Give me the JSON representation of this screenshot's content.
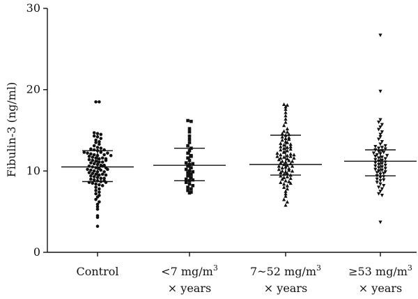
{
  "chart_data": {
    "type": "scatter",
    "subtype": "dot-plot-with-median-iqr",
    "title": "",
    "ylabel": "Fibulin-3 (ng/ml)",
    "ylim": [
      0,
      30
    ],
    "yticks": [
      0,
      10,
      20,
      30
    ],
    "grid": false,
    "categories": [
      {
        "line1": "Control",
        "line2": "",
        "sup": ""
      },
      {
        "line1": "<7 mg/m",
        "sup": "3",
        "line2": "× years"
      },
      {
        "line1": "7~52 mg/m",
        "sup": "3",
        "line2": "× years"
      },
      {
        "line1": "≥53 mg/m",
        "sup": "3",
        "line2": "× years"
      }
    ],
    "series": [
      {
        "marker": "circle",
        "median": 10.5,
        "q1": 8.7,
        "q3": 12.5,
        "values": [
          18.5,
          18.5,
          14.7,
          14.6,
          14.5,
          14.3,
          14.2,
          14.0,
          13.8,
          13.6,
          13.5,
          13.3,
          13.1,
          12.9,
          12.8,
          12.7,
          12.6,
          12.5,
          12.4,
          12.3,
          12.2,
          12.1,
          12.0,
          11.9,
          11.8,
          11.7,
          11.6,
          11.5,
          11.4,
          11.3,
          11.2,
          11.1,
          11.0,
          10.9,
          10.8,
          10.7,
          10.6,
          10.5,
          10.4,
          10.3,
          10.2,
          10.1,
          10.0,
          9.9,
          9.8,
          9.7,
          9.6,
          9.5,
          9.4,
          9.3,
          9.2,
          9.1,
          9.0,
          8.9,
          8.8,
          8.7,
          8.6,
          8.5,
          8.4,
          8.3,
          8.2,
          8.0,
          7.8,
          7.6,
          7.4,
          7.2,
          7.0,
          6.8,
          6.5,
          6.2,
          5.9,
          5.6,
          5.3,
          4.5,
          4.3,
          3.2,
          12.3,
          12.0,
          11.6,
          11.1,
          10.6,
          10.1,
          9.6,
          9.1,
          8.6,
          12.2,
          11.3,
          10.4,
          9.5,
          8.8,
          11.9,
          10.7,
          9.9,
          12.6,
          11.5,
          10.2
        ]
      },
      {
        "marker": "square",
        "median": 10.7,
        "q1": 8.8,
        "q3": 12.8,
        "values": [
          16.2,
          16.1,
          15.2,
          14.8,
          14.3,
          13.9,
          13.5,
          13.1,
          12.8,
          12.5,
          12.2,
          11.9,
          11.6,
          11.3,
          11.0,
          10.8,
          10.6,
          10.4,
          10.2,
          10.0,
          9.8,
          9.6,
          9.4,
          9.2,
          9.0,
          8.8,
          8.6,
          8.4,
          8.2,
          8.0,
          7.8,
          7.6,
          7.4,
          7.3,
          11.8,
          10.9,
          9.9,
          8.9
        ]
      },
      {
        "marker": "triangle-up",
        "median": 10.8,
        "q1": 9.5,
        "q3": 14.4,
        "values": [
          18.2,
          18.1,
          17.9,
          17.6,
          17.2,
          16.8,
          16.4,
          16.0,
          15.6,
          15.2,
          14.9,
          14.6,
          14.4,
          14.2,
          14.0,
          13.8,
          13.6,
          13.4,
          13.2,
          13.0,
          12.8,
          12.6,
          12.4,
          12.2,
          12.0,
          11.8,
          11.6,
          11.4,
          11.2,
          11.0,
          10.8,
          10.6,
          10.4,
          10.2,
          10.0,
          9.8,
          9.6,
          9.4,
          9.2,
          9.0,
          8.8,
          8.6,
          8.4,
          8.2,
          8.0,
          7.8,
          7.5,
          7.2,
          6.9,
          6.5,
          6.2,
          5.8,
          14.8,
          14.1,
          13.5,
          12.9,
          12.3,
          11.7,
          11.1,
          10.5,
          9.9,
          9.3,
          8.7,
          13.9,
          12.5,
          11.3,
          10.1,
          9.1,
          13.3,
          11.9,
          10.7,
          9.7,
          12.7,
          11.5,
          10.3,
          12.1,
          10.9,
          11.2,
          10.6,
          11.8,
          12.0,
          10.0,
          9.5,
          13.0,
          14.5,
          8.5,
          11.6
        ]
      },
      {
        "marker": "triangle-down",
        "median": 11.2,
        "q1": 9.4,
        "q3": 12.6,
        "values": [
          26.7,
          19.8,
          16.3,
          16.0,
          15.7,
          15.4,
          15.1,
          14.8,
          14.5,
          14.2,
          13.9,
          13.6,
          13.3,
          13.0,
          12.8,
          12.6,
          12.4,
          12.2,
          12.0,
          11.8,
          11.6,
          11.4,
          11.2,
          11.0,
          10.8,
          10.6,
          10.4,
          10.2,
          10.0,
          9.8,
          9.6,
          9.4,
          9.2,
          9.0,
          8.8,
          8.6,
          8.4,
          8.2,
          8.0,
          7.8,
          7.5,
          7.2,
          7.0,
          3.7,
          12.9,
          12.1,
          11.3,
          10.5,
          9.7,
          8.9,
          12.5,
          11.7,
          10.9,
          10.1,
          9.3,
          12.3,
          11.5,
          10.7,
          9.9,
          11.9,
          11.1,
          10.3,
          13.1,
          12.7
        ]
      }
    ]
  }
}
